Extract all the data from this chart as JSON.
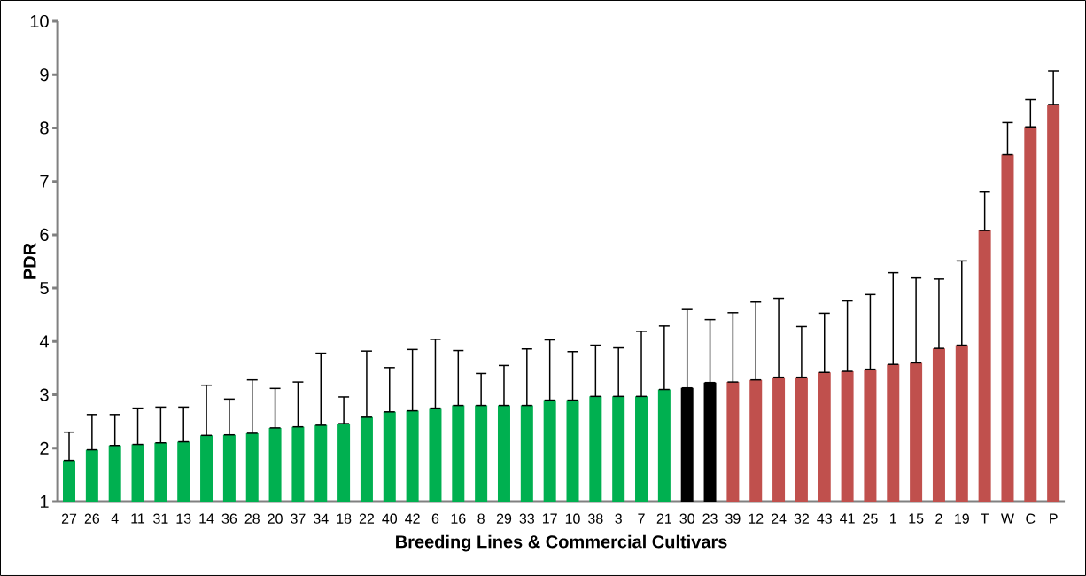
{
  "chart_data": {
    "type": "bar",
    "xlabel": "Breeding Lines & Commercial Cultivars",
    "ylabel": "PDR",
    "categories": [
      "27",
      "26",
      "4",
      "11",
      "31",
      "13",
      "14",
      "36",
      "28",
      "20",
      "37",
      "34",
      "18",
      "22",
      "40",
      "42",
      "6",
      "16",
      "8",
      "29",
      "33",
      "17",
      "10",
      "38",
      "3",
      "7",
      "21",
      "30",
      "23",
      "39",
      "12",
      "24",
      "32",
      "43",
      "41",
      "25",
      "1",
      "15",
      "2",
      "19",
      "T",
      "W",
      "C",
      "P"
    ],
    "values": [
      1.77,
      1.97,
      2.05,
      2.07,
      2.1,
      2.12,
      2.24,
      2.25,
      2.28,
      2.38,
      2.4,
      2.43,
      2.46,
      2.58,
      2.68,
      2.7,
      2.75,
      2.8,
      2.8,
      2.8,
      2.8,
      2.9,
      2.9,
      2.97,
      2.97,
      2.97,
      3.1,
      3.13,
      3.23,
      3.24,
      3.28,
      3.33,
      3.33,
      3.42,
      3.44,
      3.48,
      3.57,
      3.6,
      3.87,
      3.93,
      6.08,
      7.5,
      8.02,
      8.44
    ],
    "errors": [
      [
        1.77,
        2.3
      ],
      [
        1.97,
        2.63
      ],
      [
        2.05,
        2.63
      ],
      [
        2.07,
        2.75
      ],
      [
        2.1,
        2.77
      ],
      [
        2.12,
        2.77
      ],
      [
        2.24,
        3.18
      ],
      [
        2.25,
        2.92
      ],
      [
        2.28,
        3.28
      ],
      [
        2.38,
        3.12
      ],
      [
        2.4,
        3.24
      ],
      [
        2.43,
        3.78
      ],
      [
        2.46,
        2.96
      ],
      [
        2.58,
        3.82
      ],
      [
        2.68,
        3.51
      ],
      [
        2.7,
        3.85
      ],
      [
        2.75,
        4.04
      ],
      [
        2.8,
        3.83
      ],
      [
        2.8,
        3.4
      ],
      [
        2.8,
        3.55
      ],
      [
        2.8,
        3.86
      ],
      [
        2.9,
        4.03
      ],
      [
        2.9,
        3.81
      ],
      [
        2.97,
        3.93
      ],
      [
        2.97,
        3.88
      ],
      [
        2.97,
        4.19
      ],
      [
        3.1,
        4.29
      ],
      [
        3.13,
        4.6
      ],
      [
        3.23,
        4.41
      ],
      [
        3.24,
        4.54
      ],
      [
        3.28,
        4.74
      ],
      [
        3.33,
        4.81
      ],
      [
        3.33,
        4.28
      ],
      [
        3.42,
        4.53
      ],
      [
        3.44,
        4.76
      ],
      [
        3.48,
        4.88
      ],
      [
        3.57,
        5.29
      ],
      [
        3.6,
        5.19
      ],
      [
        3.87,
        5.17
      ],
      [
        3.93,
        5.51
      ],
      [
        6.08,
        6.8
      ],
      [
        7.5,
        8.1
      ],
      [
        8.02,
        8.53
      ],
      [
        8.44,
        9.07
      ]
    ],
    "colors": [
      "#00b050",
      "#00b050",
      "#00b050",
      "#00b050",
      "#00b050",
      "#00b050",
      "#00b050",
      "#00b050",
      "#00b050",
      "#00b050",
      "#00b050",
      "#00b050",
      "#00b050",
      "#00b050",
      "#00b050",
      "#00b050",
      "#00b050",
      "#00b050",
      "#00b050",
      "#00b050",
      "#00b050",
      "#00b050",
      "#00b050",
      "#00b050",
      "#00b050",
      "#00b050",
      "#00b050",
      "#000000",
      "#000000",
      "#c0504d",
      "#c0504d",
      "#c0504d",
      "#c0504d",
      "#c0504d",
      "#c0504d",
      "#c0504d",
      "#c0504d",
      "#c0504d",
      "#c0504d",
      "#c0504d",
      "#c0504d",
      "#c0504d",
      "#c0504d",
      "#c0504d"
    ],
    "ylim": [
      1,
      10
    ],
    "yticks": [
      1,
      2,
      3,
      4,
      5,
      6,
      7,
      8,
      9,
      10
    ]
  }
}
